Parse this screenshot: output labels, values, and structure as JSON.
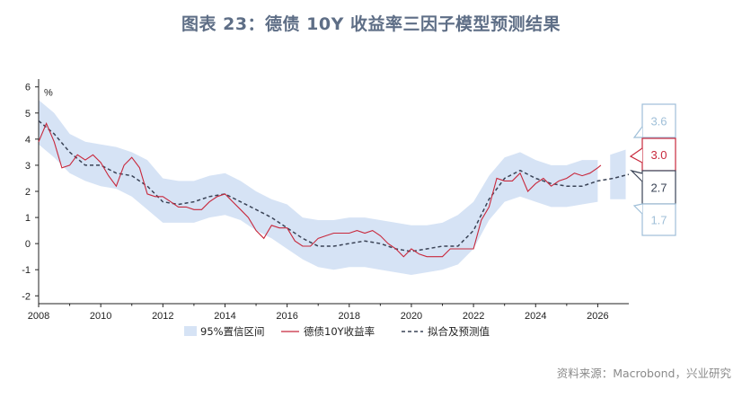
{
  "title": "图表 23：德债 10Y 收益率三因子模型预测结果",
  "source": "资料来源：Macrobond，兴业研究",
  "colors": {
    "band": "#d6e3f5",
    "actual": "#c8283c",
    "fitted": "#3a4356",
    "callout_upper": "#9fbfd8",
    "callout_actual": "#c8283c",
    "callout_fitted": "#3a4356",
    "callout_lower": "#9fbfd8"
  },
  "chart_data": {
    "type": "line",
    "title": "图表 23：德债 10Y 收益率三因子模型预测结果",
    "ylabel": "%",
    "xlim": [
      2008,
      2027
    ],
    "ylim": [
      -2.3,
      6.3
    ],
    "xticks": [
      2008,
      2010,
      2012,
      2014,
      2016,
      2018,
      2020,
      2022,
      2024,
      2026
    ],
    "yticks": [
      -2,
      -1,
      0,
      1,
      2,
      3,
      4,
      5,
      6
    ],
    "legend": {
      "position": "bottom",
      "entries": [
        "95%置信区间",
        "德债10Y收益率",
        "拟合及预测值"
      ]
    },
    "series": [
      {
        "name": "95%置信区间",
        "kind": "band",
        "x": [
          2008.0,
          2008.5,
          2009.0,
          2009.5,
          2010.0,
          2010.5,
          2011.0,
          2011.5,
          2012.0,
          2012.5,
          2013.0,
          2013.5,
          2014.0,
          2014.5,
          2015.0,
          2015.5,
          2016.0,
          2016.5,
          2017.0,
          2017.5,
          2018.0,
          2018.5,
          2019.0,
          2019.5,
          2020.0,
          2020.5,
          2021.0,
          2021.5,
          2022.0,
          2022.5,
          2023.0,
          2023.5,
          2024.0,
          2024.5,
          2025.0,
          2025.5,
          2026.0
        ],
        "upper": [
          5.5,
          5.0,
          4.2,
          3.9,
          3.8,
          3.7,
          3.5,
          3.2,
          2.5,
          2.4,
          2.4,
          2.6,
          2.7,
          2.4,
          2.0,
          1.7,
          1.5,
          1.0,
          0.9,
          0.9,
          1.0,
          1.0,
          0.9,
          0.8,
          0.7,
          0.7,
          0.8,
          1.1,
          1.6,
          2.6,
          3.3,
          3.5,
          3.2,
          3.0,
          3.0,
          3.2,
          3.2
        ],
        "lower": [
          3.8,
          3.3,
          2.7,
          2.4,
          2.2,
          2.1,
          1.8,
          1.3,
          0.8,
          0.8,
          0.8,
          1.0,
          1.1,
          0.9,
          0.5,
          0.2,
          -0.2,
          -0.6,
          -0.9,
          -1.0,
          -0.9,
          -0.9,
          -1.0,
          -1.1,
          -1.2,
          -1.1,
          -1.0,
          -0.8,
          -0.2,
          0.9,
          1.6,
          1.8,
          1.6,
          1.4,
          1.4,
          1.5,
          1.6
        ]
      },
      {
        "name": "德债10Y收益率",
        "kind": "line",
        "x": [
          2008.0,
          2008.25,
          2008.5,
          2008.75,
          2009.0,
          2009.25,
          2009.5,
          2009.75,
          2010.0,
          2010.25,
          2010.5,
          2010.75,
          2011.0,
          2011.25,
          2011.5,
          2011.75,
          2012.0,
          2012.25,
          2012.5,
          2012.75,
          2013.0,
          2013.25,
          2013.5,
          2013.75,
          2014.0,
          2014.25,
          2014.5,
          2014.75,
          2015.0,
          2015.25,
          2015.5,
          2015.75,
          2016.0,
          2016.25,
          2016.5,
          2016.75,
          2017.0,
          2017.25,
          2017.5,
          2017.75,
          2018.0,
          2018.25,
          2018.5,
          2018.75,
          2019.0,
          2019.25,
          2019.5,
          2019.75,
          2020.0,
          2020.25,
          2020.5,
          2020.75,
          2021.0,
          2021.25,
          2021.5,
          2021.75,
          2022.0,
          2022.25,
          2022.5,
          2022.75,
          2023.0,
          2023.25,
          2023.5,
          2023.75,
          2024.0,
          2024.25,
          2024.5,
          2024.75,
          2025.0,
          2025.25,
          2025.5,
          2025.75,
          2026.0,
          2026.1
        ],
        "y": [
          3.9,
          4.6,
          3.9,
          2.9,
          3.0,
          3.4,
          3.2,
          3.4,
          3.1,
          2.6,
          2.2,
          3.0,
          3.3,
          2.9,
          1.9,
          1.8,
          1.8,
          1.6,
          1.4,
          1.4,
          1.3,
          1.3,
          1.6,
          1.8,
          1.9,
          1.6,
          1.3,
          1.0,
          0.5,
          0.2,
          0.7,
          0.6,
          0.6,
          0.1,
          -0.1,
          -0.1,
          0.2,
          0.3,
          0.4,
          0.4,
          0.4,
          0.5,
          0.4,
          0.5,
          0.3,
          0.0,
          -0.2,
          -0.5,
          -0.2,
          -0.4,
          -0.5,
          -0.5,
          -0.5,
          -0.2,
          -0.2,
          -0.2,
          -0.2,
          0.9,
          1.4,
          2.5,
          2.4,
          2.4,
          2.7,
          2.0,
          2.3,
          2.5,
          2.2,
          2.4,
          2.5,
          2.7,
          2.6,
          2.7,
          2.9,
          3.0
        ]
      },
      {
        "name": "拟合及预测值",
        "kind": "dashed",
        "x": [
          2008.0,
          2008.5,
          2009.0,
          2009.5,
          2010.0,
          2010.5,
          2011.0,
          2011.5,
          2012.0,
          2012.5,
          2013.0,
          2013.5,
          2014.0,
          2014.5,
          2015.0,
          2015.5,
          2016.0,
          2016.5,
          2017.0,
          2017.5,
          2018.0,
          2018.5,
          2019.0,
          2019.5,
          2020.0,
          2020.5,
          2021.0,
          2021.5,
          2022.0,
          2022.5,
          2023.0,
          2023.5,
          2024.0,
          2024.5,
          2025.0,
          2025.5,
          2026.0,
          2026.5,
          2027.0
        ],
        "y": [
          4.7,
          4.2,
          3.5,
          3.0,
          3.0,
          2.7,
          2.6,
          2.2,
          1.6,
          1.5,
          1.6,
          1.8,
          1.9,
          1.6,
          1.3,
          1.0,
          0.6,
          0.2,
          -0.1,
          -0.1,
          0.0,
          0.1,
          0.0,
          -0.2,
          -0.3,
          -0.2,
          -0.1,
          -0.1,
          0.5,
          1.7,
          2.5,
          2.8,
          2.5,
          2.3,
          2.2,
          2.2,
          2.4,
          2.5,
          2.65
        ]
      }
    ],
    "forecast_band": {
      "x": [
        2026.4,
        2026.9
      ],
      "upper": [
        3.4,
        3.6
      ],
      "lower": [
        1.7,
        1.7
      ]
    },
    "callouts": [
      {
        "label": "3.6",
        "role": "upper"
      },
      {
        "label": "3.0",
        "role": "actual"
      },
      {
        "label": "2.7",
        "role": "fitted"
      },
      {
        "label": "1.7",
        "role": "lower"
      }
    ]
  }
}
